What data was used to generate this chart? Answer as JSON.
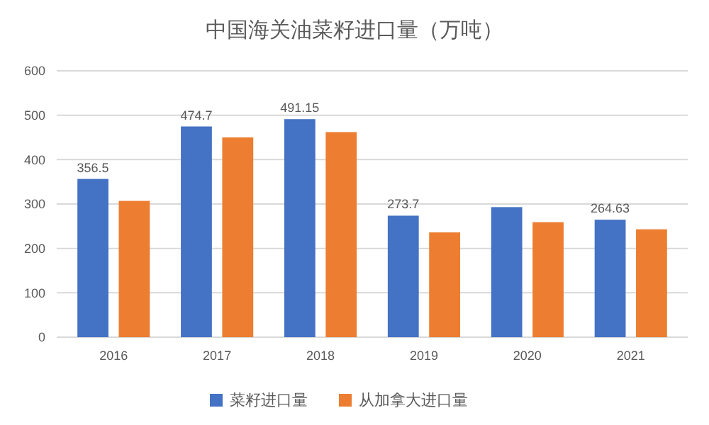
{
  "chart_data": {
    "type": "bar",
    "title": "中国海关油菜籽进口量（万吨）",
    "categories": [
      "2016",
      "2017",
      "2018",
      "2019",
      "2020",
      "2021"
    ],
    "series": [
      {
        "name": "菜籽进口量",
        "color": "#4472c4",
        "values": [
          356.5,
          474.7,
          491.15,
          273.7,
          293,
          264.63
        ],
        "value_labels": [
          "356.5",
          "474.7",
          "491.15",
          "273.7",
          null,
          "264.63"
        ]
      },
      {
        "name": "从加拿大进口量",
        "color": "#ed7d31",
        "values": [
          307,
          450,
          462,
          236,
          259,
          243
        ]
      }
    ],
    "ylim": [
      0,
      600
    ],
    "yticks": [
      0,
      100,
      200,
      300,
      400,
      500,
      600
    ],
    "grid": "y",
    "legend": "bottom"
  }
}
